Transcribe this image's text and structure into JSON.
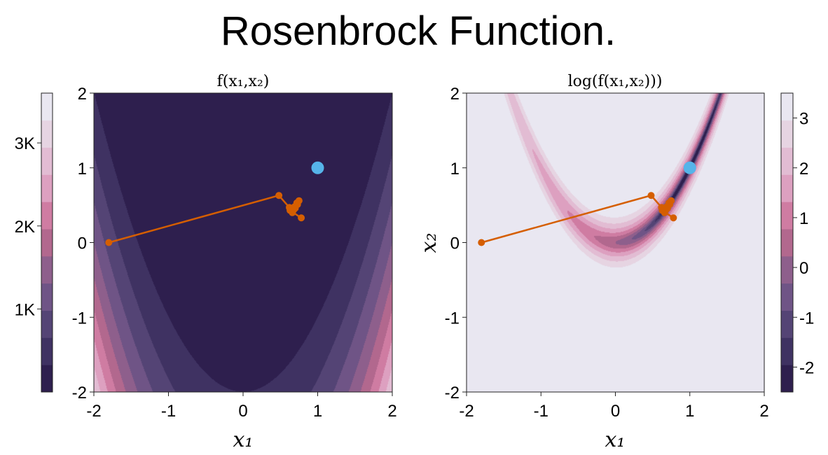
{
  "figure": {
    "title": "Rosenbrock Function."
  },
  "colors": {
    "levels_dark_to_light": [
      "#2e1f4e",
      "#3f3262",
      "#544475",
      "#6f5486",
      "#8e5f8c",
      "#b2688e",
      "#cf7ca2",
      "#dda0c0",
      "#e2bcd3",
      "#e6d4e2",
      "#e9e7f1"
    ],
    "path": "#d55e00",
    "optimum": "#56b4e9"
  },
  "chart_data": [
    {
      "type": "contour",
      "subtitle": "f(x₁,x₂)",
      "xlabel": "x₁",
      "ylabel": "",
      "xlim": [
        -2,
        2
      ],
      "ylim": [
        -2,
        2
      ],
      "xticks": [
        -2,
        -1,
        0,
        1,
        2
      ],
      "yticks": [
        -2,
        -1,
        0,
        1,
        2
      ],
      "xtick_labels": [
        "-2",
        "-1",
        "0",
        "1",
        "2"
      ],
      "ytick_labels": [
        "-2",
        "-1",
        "0",
        "1",
        "2"
      ],
      "function": "(1-x1)^2 + 100*(x2-x1^2)^2",
      "level_step": 400,
      "colorbar": {
        "position": "left",
        "range": [
          0,
          3600
        ],
        "ticks": [
          1000,
          2000,
          3000
        ],
        "tick_labels": [
          "1K",
          "2K",
          "3K"
        ]
      }
    },
    {
      "type": "contour",
      "subtitle": "log(f(x₁,x₂)))",
      "xlabel": "x₁",
      "ylabel": "x₂",
      "xlim": [
        -2,
        2
      ],
      "ylim": [
        -2,
        2
      ],
      "xticks": [
        -2,
        -1,
        0,
        1,
        2
      ],
      "yticks": [
        -2,
        -1,
        0,
        1,
        2
      ],
      "xtick_labels": [
        "-2",
        "-1",
        "0",
        "1",
        "2"
      ],
      "ytick_labels": [
        "-2",
        "-1",
        "0",
        "1",
        "2"
      ],
      "function": "log((1-x1)^2 + 100*(x2-x1^2)^2)",
      "level_step": 0.5,
      "colorbar": {
        "position": "right",
        "range": [
          -2.5,
          3.5
        ],
        "ticks": [
          -2,
          -1,
          0,
          1,
          2,
          3
        ],
        "tick_labels": [
          "-2",
          "-1",
          "0",
          "1",
          "2",
          "3"
        ]
      }
    }
  ],
  "optimizer_path": {
    "x": [
      -1.8,
      0.48,
      0.62,
      0.65,
      0.68,
      0.66,
      0.7,
      0.73,
      0.75,
      0.72,
      0.69,
      0.63,
      0.78
    ],
    "y": [
      0.0,
      0.63,
      0.47,
      0.43,
      0.44,
      0.4,
      0.46,
      0.51,
      0.56,
      0.53,
      0.48,
      0.43,
      0.33
    ]
  },
  "optimum_point": {
    "x": 1.0,
    "y": 1.0
  }
}
